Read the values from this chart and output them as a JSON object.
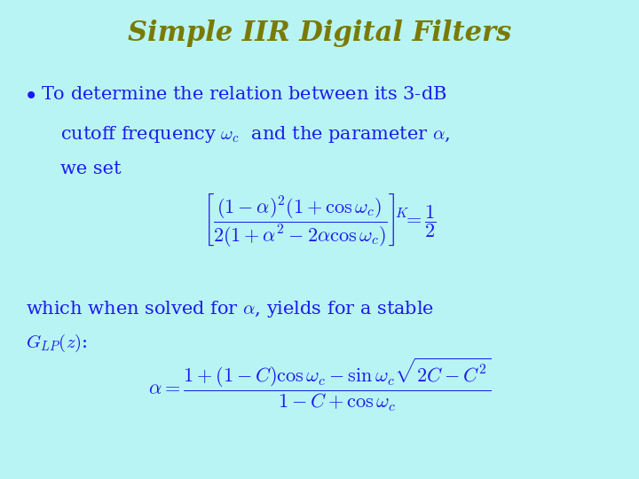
{
  "background_color": "#b8f4f4",
  "title": "Simple IIR Digital Filters",
  "title_color": "#7a7a00",
  "title_fontsize": 22,
  "body_color": "#1a1aee",
  "body_fontsize": 15,
  "eq_fontsize": 15,
  "fig_width": 7.2,
  "fig_height": 5.4,
  "dpi": 100
}
